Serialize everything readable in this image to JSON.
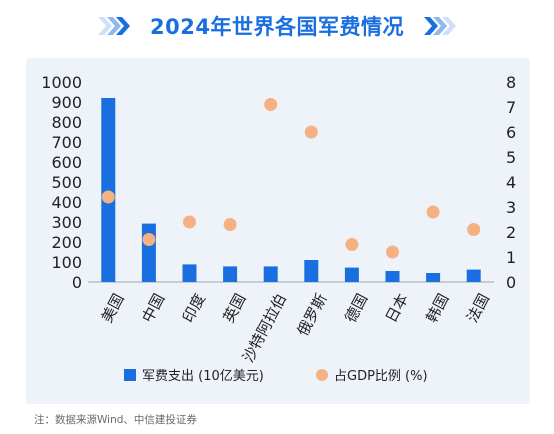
{
  "title": "2024年世界各国军费情况",
  "footnote": "注：数据来源Wind、中信建投证券",
  "colors": {
    "title": "#1a6fe0",
    "bar": "#1a6fe0",
    "dot": "#f6b182",
    "panel": "#eef3f9"
  },
  "icons": {
    "left": "double-chevron-right-icon",
    "right": "double-chevron-right-icon"
  },
  "chart_data": {
    "type": "bar",
    "categories": [
      "美国",
      "中国",
      "印度",
      "英国",
      "沙特阿拉伯",
      "俄罗斯",
      "德国",
      "日本",
      "韩国",
      "法国"
    ],
    "series": [
      {
        "name": "军费支出 (10亿美元)",
        "type": "bar",
        "axis": "left",
        "values": [
          920,
          292,
          88,
          78,
          78,
          110,
          72,
          55,
          45,
          62
        ]
      },
      {
        "name": "占GDP比例 (%)",
        "type": "scatter",
        "axis": "right",
        "values": [
          3.4,
          1.7,
          2.4,
          2.3,
          7.1,
          6.0,
          1.5,
          1.2,
          2.8,
          2.1
        ]
      }
    ],
    "y_left": {
      "min": 0,
      "max": 1000,
      "ticks": [
        "0",
        "100",
        "200",
        "300",
        "400",
        "500",
        "600",
        "700",
        "800",
        "900",
        "1000"
      ]
    },
    "y_right": {
      "min": 0,
      "max": 8,
      "ticks": [
        "0",
        "1",
        "2",
        "3",
        "4",
        "5",
        "6",
        "7",
        "8"
      ]
    },
    "grid": false,
    "legend_position": "bottom"
  }
}
